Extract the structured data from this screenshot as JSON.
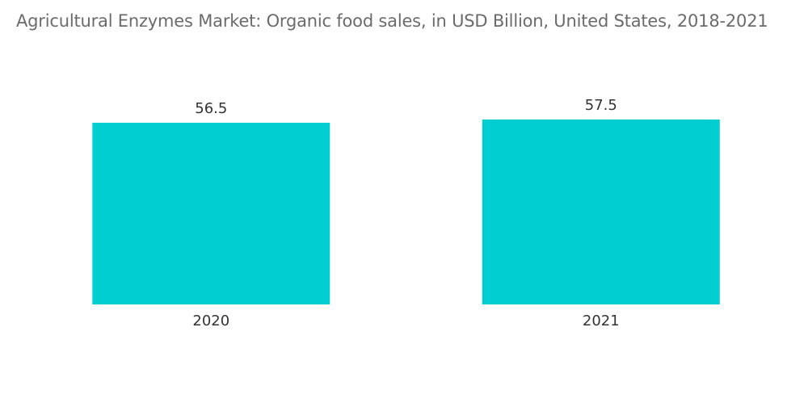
{
  "chart_data": {
    "type": "bar",
    "title": "Agricultural Enzymes Market: Organic food sales, in USD Billion, United States, 2018-2021",
    "categories": [
      "2020",
      "2021"
    ],
    "values": [
      56.5,
      57.5
    ],
    "value_labels": [
      "56.5",
      "57.5"
    ],
    "xlabel": "",
    "ylabel": "",
    "ylim": [
      0,
      58
    ],
    "grid": false,
    "legend": "none",
    "bar_color": "#00CED1"
  }
}
